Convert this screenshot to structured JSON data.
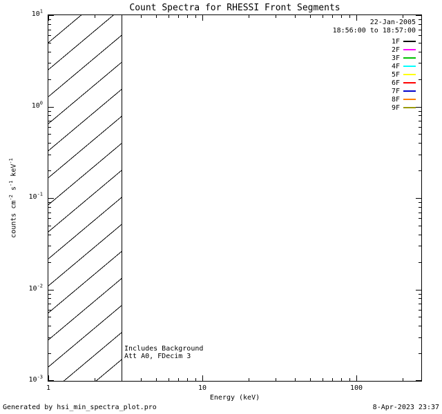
{
  "title": "Count Spectra for RHESSI Front Segments",
  "header": {
    "date": "22-Jan-2005",
    "time_range": "18:56:00 to 18:57:00"
  },
  "legend": {
    "entries": [
      {
        "label": "1F",
        "color": "#000000"
      },
      {
        "label": "2F",
        "color": "#ff00ff"
      },
      {
        "label": "3F",
        "color": "#00c000"
      },
      {
        "label": "4F",
        "color": "#00ffff"
      },
      {
        "label": "5F",
        "color": "#ffff00"
      },
      {
        "label": "6F",
        "color": "#ff0000"
      },
      {
        "label": "7F",
        "color": "#0000cc"
      },
      {
        "label": "8F",
        "color": "#ff8000"
      },
      {
        "label": "9F",
        "color": "#999900"
      }
    ]
  },
  "axes": {
    "x_title": "Energy (keV)",
    "x_tick_values": [
      1,
      10,
      100
    ],
    "x_tick_labels": [
      "1",
      "10",
      "100"
    ],
    "y_tick_base": "10",
    "y_tick_exponents": [
      "1",
      "0",
      "-1",
      "-2",
      "-3"
    ],
    "y_title_parts": [
      {
        "t": "counts cm"
      },
      {
        "s": "-2"
      },
      {
        "t": " s"
      },
      {
        "s": "-1"
      },
      {
        "t": " keV"
      },
      {
        "s": "-1"
      }
    ]
  },
  "annotations": [
    "Includes Background",
    "Att A0, FDecim 3"
  ],
  "footer": {
    "left": "Generated by hsi_min_spectra_plot.pro",
    "right": "8-Apr-2023 23:37"
  },
  "chart_data": {
    "type": "line",
    "title": "Count Spectra for RHESSI Front Segments",
    "xlabel": "Energy (keV)",
    "ylabel": "counts cm^-2 s^-1 keV^-1",
    "x_scale": "log",
    "y_scale": "log",
    "xlim": [
      1,
      264
    ],
    "ylim": [
      0.001,
      10
    ],
    "x_ticks": [
      1,
      10,
      100
    ],
    "y_ticks": [
      0.001,
      0.01,
      0.1,
      1,
      10
    ],
    "grid": false,
    "legend_position": "top-right",
    "legend_entries": [
      "1F",
      "2F",
      "3F",
      "4F",
      "5F",
      "6F",
      "7F",
      "8F",
      "9F"
    ],
    "series": [],
    "hatched_region": {
      "x_start": 1,
      "x_end": 3,
      "y_start": 0.001,
      "y_end": 10
    },
    "notes": "No spectra curves are drawn in the plot area; a diagonal-hatched exclusion region spans x=1 to x=3 keV over the full y range."
  }
}
